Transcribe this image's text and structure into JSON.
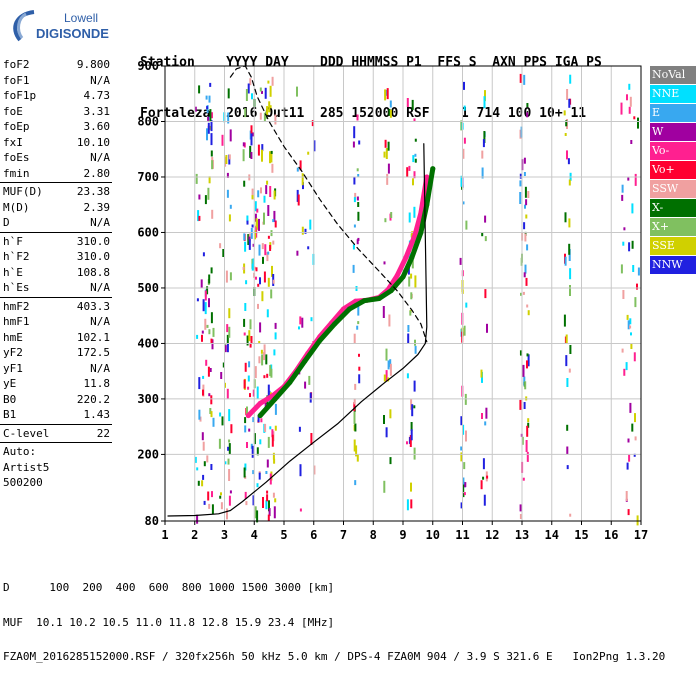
{
  "logo": {
    "brand_top": "Lowell",
    "brand_bottom": "DIGISONDE"
  },
  "header": {
    "line1": "Station    YYYY DAY    DDD HHMMSS P1  FFS S  AXN PPS IGA PS",
    "line2": "Fortaleza  2016 Out11  285 152000 RSF    1 714 100 10+ 11"
  },
  "params": {
    "group1": [
      {
        "name": "foF2",
        "value": "9.800"
      },
      {
        "name": "foF1",
        "value": "N/A"
      },
      {
        "name": "foF1p",
        "value": "4.73"
      },
      {
        "name": "foE",
        "value": "3.31"
      },
      {
        "name": "foEp",
        "value": "3.60"
      },
      {
        "name": "fxI",
        "value": "10.10"
      },
      {
        "name": "foEs",
        "value": "N/A"
      },
      {
        "name": "fmin",
        "value": "2.80"
      }
    ],
    "group2": [
      {
        "name": "MUF(D)",
        "value": "23.38"
      },
      {
        "name": "M(D)",
        "value": "2.39"
      },
      {
        "name": "D",
        "value": "N/A"
      }
    ],
    "group3": [
      {
        "name": "h`F",
        "value": "310.0"
      },
      {
        "name": "h`F2",
        "value": "310.0"
      },
      {
        "name": "h`E",
        "value": "108.8"
      },
      {
        "name": "h`Es",
        "value": "N/A"
      }
    ],
    "group4": [
      {
        "name": "hmF2",
        "value": "403.3"
      },
      {
        "name": "hmF1",
        "value": "N/A"
      },
      {
        "name": "hmE",
        "value": "102.1"
      },
      {
        "name": "yF2",
        "value": "172.5"
      },
      {
        "name": "yF1",
        "value": "N/A"
      },
      {
        "name": "yE",
        "value": "11.8"
      },
      {
        "name": "B0",
        "value": "220.2"
      },
      {
        "name": "B1",
        "value": "1.43"
      }
    ],
    "clevel": {
      "name": "C-level",
      "value": "22"
    },
    "auto": [
      "Auto:",
      "Artist5",
      "500200"
    ]
  },
  "legend": [
    {
      "label": "NoVal",
      "color": "#808080"
    },
    {
      "label": "NNE",
      "color": "#00e0ff"
    },
    {
      "label": "E",
      "color": "#38a8f0"
    },
    {
      "label": "W",
      "color": "#a000a0"
    },
    {
      "label": "Vo-",
      "color": "#ff2090"
    },
    {
      "label": "Vo+",
      "color": "#ff0030"
    },
    {
      "label": "SSW",
      "color": "#f0a0a0"
    },
    {
      "label": "X-",
      "color": "#007000"
    },
    {
      "label": "X+",
      "color": "#80c060"
    },
    {
      "label": "SSE",
      "color": "#d0d000"
    },
    {
      "label": "NNW",
      "color": "#2020e0"
    }
  ],
  "footer": {
    "line1": "D      100  200  400  600  800 1000 1500 3000 [km]",
    "line2": "MUF  10.1 10.2 10.5 11.0 11.8 12.8 15.9 23.4 [MHz]",
    "line3": "FZA0M_2016285152000.RSF / 320fx256h 50 kHz 5.0 km / DPS-4 FZA0M 904 / 3.9 S 321.6 E   Ion2Png 1.3.20"
  },
  "chart_data": {
    "type": "scatter",
    "title": "",
    "xlabel": "",
    "ylabel": "",
    "xlim": [
      1,
      17
    ],
    "ylim": [
      80,
      900
    ],
    "x_ticks": [
      1,
      2,
      3,
      4,
      5,
      6,
      7,
      8,
      9,
      10,
      11,
      12,
      13,
      14,
      15,
      16,
      17
    ],
    "y_ticks": [
      80,
      200,
      300,
      400,
      500,
      600,
      700,
      800,
      900
    ],
    "grid": true,
    "series": [
      {
        "role": "virtual-height trace (O-mode)",
        "color": "#ff2090",
        "x": [
          3.8,
          4.2,
          4.6,
          5.0,
          5.4,
          5.8,
          6.2,
          6.6,
          7.0,
          7.4,
          7.8,
          8.2,
          8.5,
          8.8,
          9.1,
          9.4,
          9.6,
          9.8
        ],
        "y": [
          270,
          292,
          305,
          322,
          350,
          382,
          412,
          437,
          462,
          476,
          478,
          483,
          497,
          522,
          555,
          595,
          635,
          700
        ]
      },
      {
        "role": "virtual-height trace (X-mode)",
        "color": "#007000",
        "x": [
          4.2,
          4.7,
          5.2,
          5.7,
          6.2,
          6.7,
          7.2,
          7.7,
          8.2,
          8.6,
          9.0,
          9.3,
          9.6,
          9.8,
          10.0
        ],
        "y": [
          270,
          300,
          330,
          368,
          405,
          435,
          462,
          477,
          481,
          495,
          520,
          555,
          600,
          650,
          715
        ]
      },
      {
        "role": "auto-scaled virtual height curve",
        "color": "#000000",
        "x": [
          1.1,
          2.0,
          2.8,
          3.2,
          3.6,
          4.4,
          5.2,
          6.0,
          6.8,
          7.6,
          8.4,
          9.0,
          9.5,
          9.75,
          9.8,
          9.7
        ],
        "y": [
          89,
          90,
          93,
          99,
          115,
          150,
          188,
          222,
          255,
          295,
          330,
          355,
          380,
          400,
          430,
          760
        ]
      },
      {
        "role": "electron density profile",
        "color": "#000000",
        "dashed": true,
        "x": [
          3.2,
          3.4,
          3.7,
          3.9,
          4.1,
          4.5,
          5.0,
          5.6,
          6.2,
          6.8,
          7.5,
          8.2,
          8.8,
          9.3,
          9.6,
          9.8
        ],
        "y": [
          880,
          895,
          900,
          880,
          845,
          800,
          755,
          710,
          660,
          615,
          570,
          530,
          495,
          460,
          435,
          403
        ]
      }
    ]
  }
}
